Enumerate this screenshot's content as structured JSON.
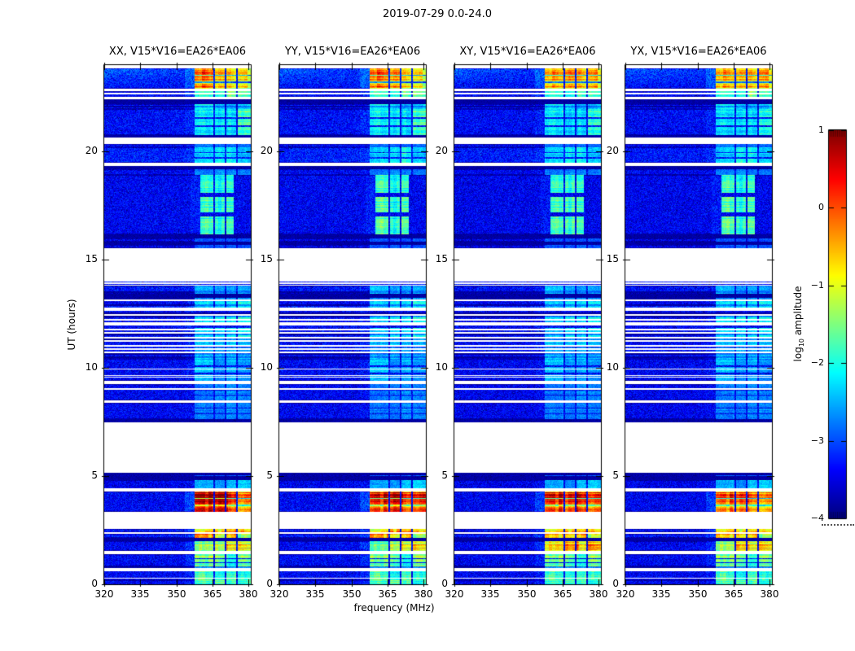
{
  "figure": {
    "title": "2019-07-29 0.0-24.0"
  },
  "chart_data": {
    "type": "heatmap",
    "title": "2019-07-29 0.0-24.0",
    "panels": [
      {
        "title": "XX, V15*V16=EA26*EA06",
        "seed": 1,
        "dim": 0,
        "hot": [
          {
            "t0": 3.35,
            "t1": 4.29,
            "boost": 0.6,
            "fmax": 371
          }
        ]
      },
      {
        "title": "YY, V15*V16=EA26*EA06",
        "seed": 2,
        "dim": 0,
        "hot": [
          {
            "t0": 3.35,
            "t1": 4.29,
            "boost": 0.2,
            "fmax": 999
          }
        ]
      },
      {
        "title": "XY, V15*V16=EA26*EA06",
        "seed": 3,
        "dim": 0.04,
        "hot": [
          {
            "t0": 1.54,
            "t1": 1.99,
            "boost": 0.65,
            "fmax": 372
          },
          {
            "t0": 3.35,
            "t1": 4.29,
            "boost": 0.1,
            "fmax": 999
          }
        ]
      },
      {
        "title": "YX, V15*V16=EA26*EA06",
        "seed": 4,
        "dim": 0.04,
        "hot": [
          {
            "t0": 1.54,
            "t1": 1.99,
            "boost": 0.3,
            "fmax": 372
          }
        ]
      }
    ],
    "x_axis": {
      "label": "frequency (MHz)",
      "ticks": [
        320,
        335,
        350,
        365,
        380
      ],
      "range": [
        320,
        381
      ]
    },
    "y_axis": {
      "label": "UT (hours)",
      "ticks": [
        0,
        5,
        10,
        15,
        20
      ],
      "range": [
        0,
        24
      ]
    },
    "colorbar": {
      "label_prefix": "log",
      "label_sub": "10",
      "label_suffix": " amplitude",
      "ticks": [
        "1",
        "0",
        "−1",
        "−2",
        "−3",
        "−4"
      ],
      "tick_values": [
        1,
        0,
        -1,
        -2,
        -3,
        -4
      ],
      "range": [
        -4,
        1
      ],
      "colormap": "jet"
    },
    "rfi_band": {
      "f0": 357.5,
      "f1": 381,
      "separators": [
        365.8,
        370.4,
        375.3
      ]
    },
    "time_segments": [
      {
        "t0": 0.0,
        "t1": 0.19,
        "kind": "stripes",
        "level": 0.45,
        "rfi": 1.2
      },
      {
        "t0": 0.19,
        "t1": 0.64,
        "kind": "noise",
        "level": 0.45,
        "rfi": 1.4,
        "sep": 0.14
      },
      {
        "t0": 0.64,
        "t1": 0.83,
        "kind": "stripes",
        "level": 0.35,
        "rfi": 0.8
      },
      {
        "t0": 0.83,
        "t1": 1.39,
        "kind": "noise",
        "level": 0.45,
        "rfi": 1.6,
        "sep": 0.08
      },
      {
        "t0": 1.39,
        "t1": 1.54,
        "kind": "white"
      },
      {
        "t0": 1.54,
        "t1": 1.99,
        "kind": "noise",
        "level": 0.45,
        "rfi": 2.1
      },
      {
        "t0": 1.99,
        "t1": 2.14,
        "kind": "dark"
      },
      {
        "t0": 2.14,
        "t1": 2.33,
        "kind": "noise",
        "level": 0.6,
        "rfi": 2.2
      },
      {
        "t0": 2.33,
        "t1": 2.39,
        "kind": "white"
      },
      {
        "t0": 2.39,
        "t1": 2.56,
        "kind": "noise",
        "level": 0.6,
        "rfi": 2.2
      },
      {
        "t0": 2.56,
        "t1": 3.35,
        "kind": "white"
      },
      {
        "t0": 3.35,
        "t1": 4.29,
        "kind": "noise",
        "level": 0.45,
        "rfi": 2.9
      },
      {
        "t0": 4.29,
        "t1": 4.4,
        "kind": "white"
      },
      {
        "t0": 4.4,
        "t1": 4.82,
        "kind": "noise",
        "level": 0.4,
        "rfi": 0.6,
        "sep": 0.08
      },
      {
        "t0": 4.82,
        "t1": 5.0,
        "kind": "dark"
      },
      {
        "t0": 5.0,
        "t1": 5.15,
        "kind": "stripes",
        "level": 0.4,
        "rfi": 0.3
      },
      {
        "t0": 5.15,
        "t1": 7.49,
        "kind": "white"
      },
      {
        "t0": 7.49,
        "t1": 7.64,
        "kind": "dark"
      },
      {
        "t0": 7.64,
        "t1": 8.39,
        "kind": "noise",
        "level": 0.42,
        "rfi": 0.4,
        "sep": 0.1
      },
      {
        "t0": 8.39,
        "t1": 8.5,
        "kind": "white"
      },
      {
        "t0": 8.5,
        "t1": 9.25,
        "kind": "noise",
        "level": 0.42,
        "rfi": 0.4,
        "sep": 0.08
      },
      {
        "t0": 9.25,
        "t1": 9.4,
        "kind": "white"
      },
      {
        "t0": 9.4,
        "t1": 10.42,
        "kind": "noise",
        "level": 0.45,
        "rfi": 0.6,
        "sep": 0.1
      },
      {
        "t0": 10.42,
        "t1": 11.25,
        "kind": "stripes",
        "level": 0.5,
        "rfi": 0.9
      },
      {
        "t0": 11.25,
        "t1": 13.24,
        "kind": "stripes",
        "level": 0.45,
        "rfi": 0.9
      },
      {
        "t0": 13.24,
        "t1": 13.43,
        "kind": "dark"
      },
      {
        "t0": 13.43,
        "t1": 13.81,
        "kind": "stripes",
        "level": 0.55,
        "rfi": 0.6
      },
      {
        "t0": 13.81,
        "t1": 14.03,
        "kind": "lines"
      },
      {
        "t0": 14.03,
        "t1": 15.54,
        "kind": "white"
      },
      {
        "t0": 15.54,
        "t1": 15.69,
        "kind": "noise",
        "level": 0.4,
        "rfi": 0.2
      },
      {
        "t0": 15.69,
        "t1": 15.84,
        "kind": "dark"
      },
      {
        "t0": 15.84,
        "t1": 15.99,
        "kind": "noise",
        "level": 0.4,
        "rfi": 0.2
      },
      {
        "t0": 15.99,
        "t1": 16.18,
        "kind": "dark"
      },
      {
        "t0": 16.18,
        "t1": 18.92,
        "kind": "noise",
        "level": 0.42,
        "rfi": 1.3,
        "band": [
          360,
          374
        ]
      },
      {
        "t0": 18.92,
        "t1": 19.18,
        "kind": "noise",
        "level": 0.45,
        "rfi": 0.4,
        "sep": 0.1
      },
      {
        "t0": 19.18,
        "t1": 19.33,
        "kind": "dark"
      },
      {
        "t0": 19.33,
        "t1": 19.48,
        "kind": "white"
      },
      {
        "t0": 19.48,
        "t1": 20.2,
        "kind": "noise",
        "level": 0.62,
        "rfi": 0.9
      },
      {
        "t0": 20.2,
        "t1": 20.35,
        "kind": "stripes",
        "level": 0.5,
        "rfi": 0.3
      },
      {
        "t0": 20.35,
        "t1": 20.65,
        "kind": "white"
      },
      {
        "t0": 20.65,
        "t1": 20.77,
        "kind": "dark"
      },
      {
        "t0": 20.77,
        "t1": 21.97,
        "kind": "noise",
        "level": 0.5,
        "rfi": 1.2
      },
      {
        "t0": 21.97,
        "t1": 22.2,
        "kind": "stripes",
        "level": 0.5,
        "rfi": 0.8
      },
      {
        "t0": 22.2,
        "t1": 22.42,
        "kind": "dark"
      },
      {
        "t0": 22.42,
        "t1": 22.53,
        "kind": "white"
      },
      {
        "t0": 22.53,
        "t1": 22.8,
        "kind": "stripes",
        "level": 0.5,
        "rfi": 1.6
      },
      {
        "t0": 22.8,
        "t1": 22.91,
        "kind": "white"
      },
      {
        "t0": 22.91,
        "t1": 23.85,
        "kind": "noise",
        "level": 0.5,
        "rfi": 2.8,
        "grad": 1
      },
      {
        "t0": 23.85,
        "t1": 24.0,
        "kind": "white"
      }
    ]
  }
}
